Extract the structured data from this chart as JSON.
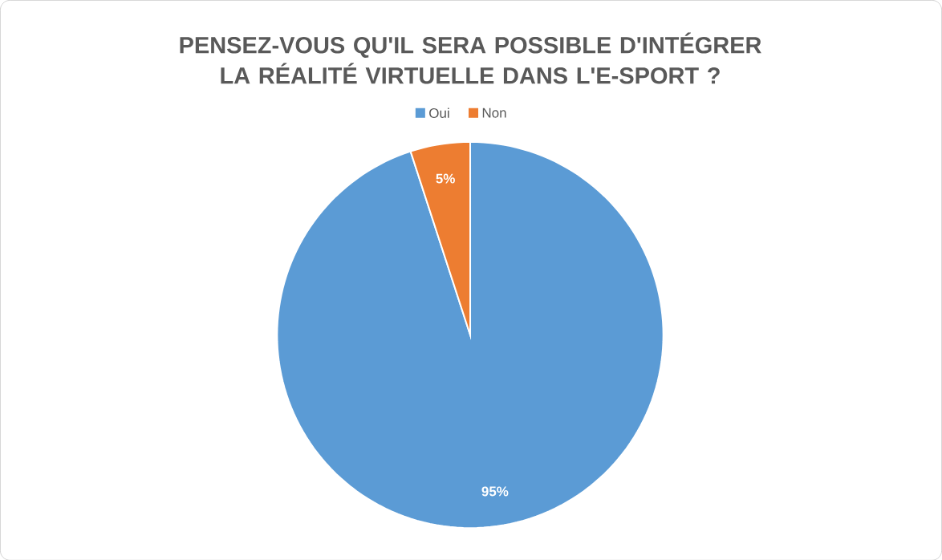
{
  "chart_data": {
    "type": "pie",
    "title": "PENSEZ-VOUS QU'IL SERA POSSIBLE D'INTÉGRER LA RÉALITÉ VIRTUELLE DANS L'E-SPORT ?",
    "categories": [
      "Oui",
      "Non"
    ],
    "values": [
      95,
      5
    ],
    "colors": [
      "#5b9bd5",
      "#ed7d31"
    ],
    "value_labels": [
      "95%",
      "5%"
    ],
    "legend": "top"
  }
}
